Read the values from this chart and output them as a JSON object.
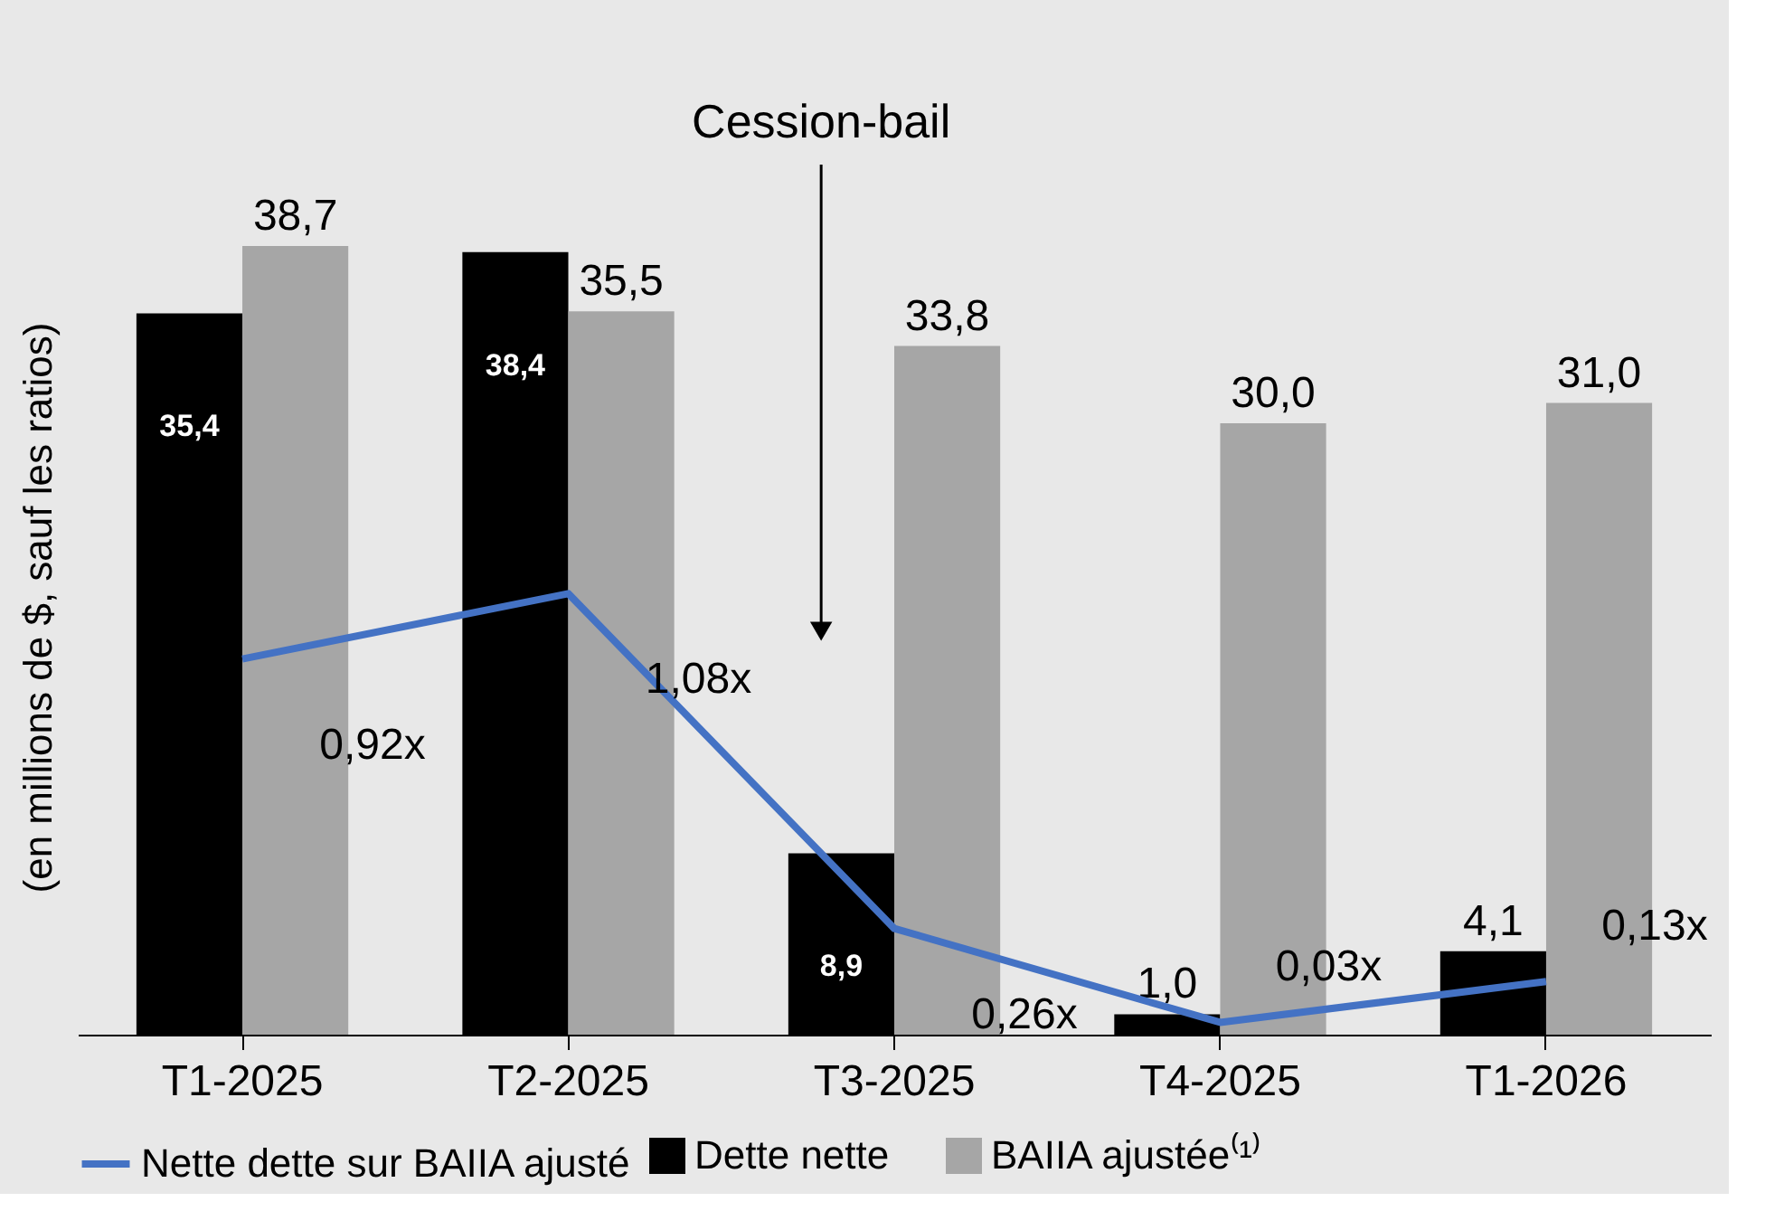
{
  "chart_data": {
    "type": "bar",
    "ylabel": "(en millions de $, sauf les ratios)",
    "categories": [
      "T1-2025",
      "T2-2025",
      "T3-2025",
      "T4-2025",
      "T1-2026"
    ],
    "series": [
      {
        "name": "Dette nette",
        "color": "#000000",
        "values": [
          35.4,
          38.4,
          8.9,
          1.0,
          4.1
        ],
        "value_labels": [
          "35,4",
          "38,4",
          "8,9",
          "1,0",
          "4,1"
        ]
      },
      {
        "name": "BAIIA ajustée⁽¹⁾",
        "color": "#a6a6a6",
        "values": [
          38.7,
          35.5,
          33.8,
          30.0,
          31.0
        ],
        "value_labels": [
          "38,7",
          "35,5",
          "33,8",
          "30,0",
          "31,0"
        ]
      },
      {
        "name": "Nette dette sur BAIIA ajusté",
        "type": "line",
        "axis": "y2",
        "color": "#4472c4",
        "values": [
          0.92,
          1.08,
          0.26,
          0.03,
          0.13
        ],
        "value_labels": [
          "0,92x",
          "1,08x",
          "0,26x",
          "0,03x",
          "0,13x"
        ]
      }
    ],
    "legend": "bottom",
    "tick_labels": "x",
    "grid": false,
    "marker": "none",
    "line_style": "solid",
    "annotations": [
      "Cession-bail"
    ]
  }
}
